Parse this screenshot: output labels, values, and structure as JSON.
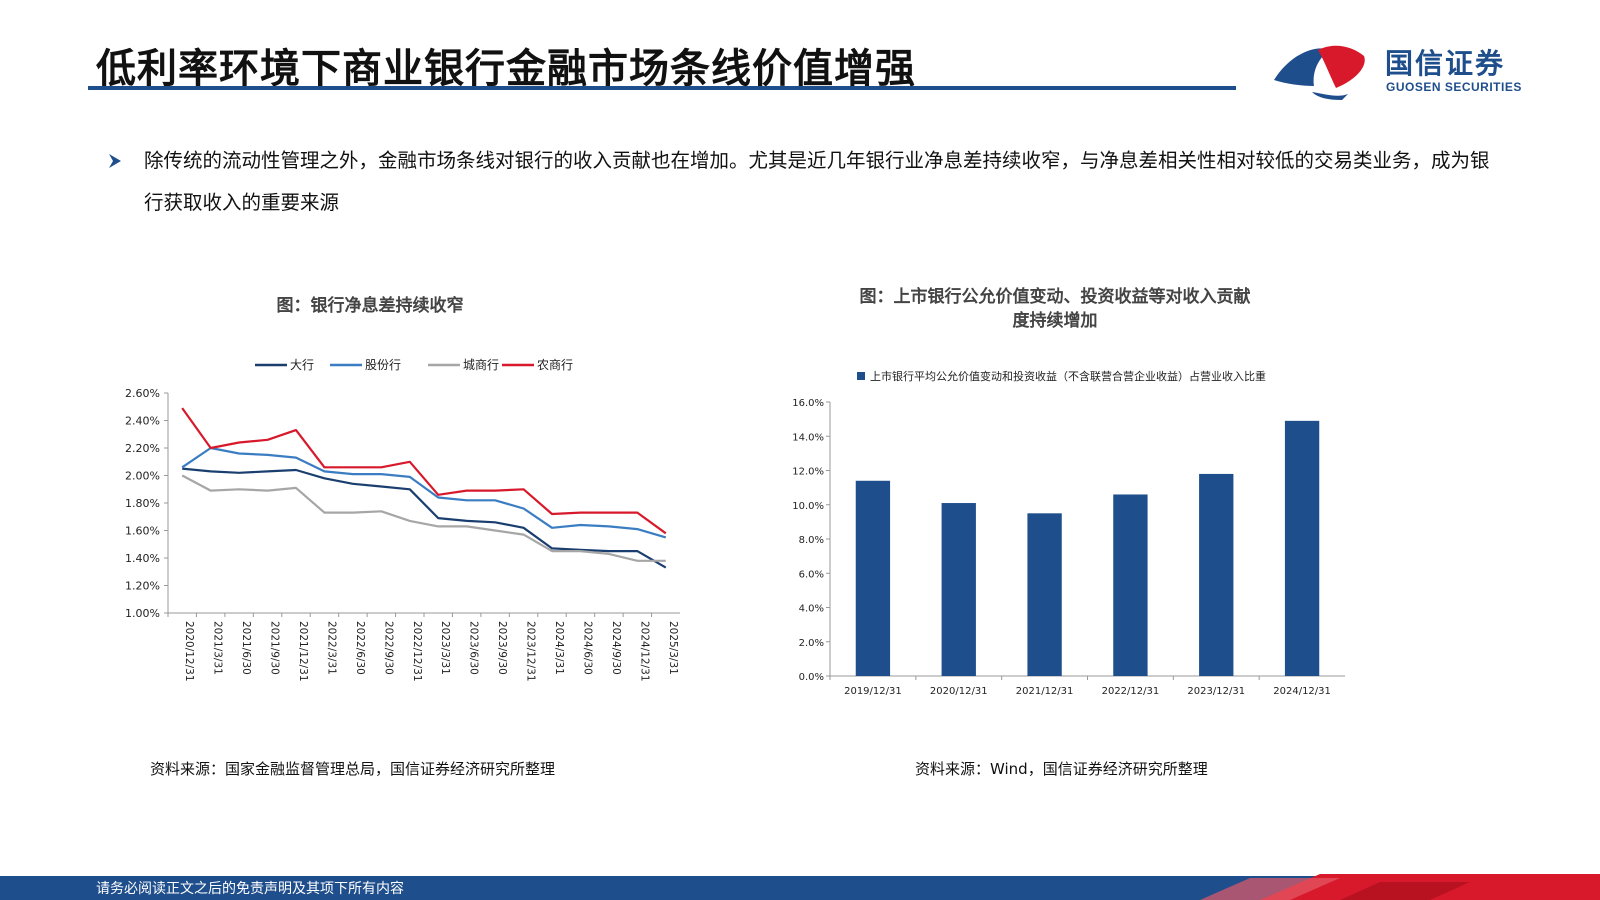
{
  "page": {
    "title": "低利率环境下商业银行金融市场条线价值增强",
    "logo_cn": "国信证券",
    "logo_en": "GUOSEN SECURITIES",
    "bullet": "除传统的流动性管理之外，金融市场条线对银行的收入贡献也在增加。尤其是近几年银行业净息差持续收窄，与净息差相关性相对较低的交易类业务，成为银行获取收入的重要来源",
    "footer": "请务必阅读正文之后的免责声明及其项下所有内容",
    "brand_colors": {
      "navy": "#1f4e8c",
      "red": "#d7192b"
    }
  },
  "left_panel": {
    "title": "图：银行净息差持续收窄",
    "source": "资料来源：国家金融监督管理总局，国信证券经济研究所整理"
  },
  "right_panel": {
    "title_line1": "图：上市银行公允价值变动、投资收益等对收入贡献",
    "title_line2": "度持续增加",
    "source": "资料来源：Wind，国信证券经济研究所整理"
  },
  "chart_data": [
    {
      "type": "line",
      "title": "图：银行净息差持续收窄",
      "x": [
        "2020/12/31",
        "2021/3/31",
        "2021/6/30",
        "2021/9/30",
        "2021/12/31",
        "2022/3/31",
        "2022/6/30",
        "2022/9/30",
        "2022/12/31",
        "2023/3/31",
        "2023/6/30",
        "2023/9/30",
        "2023/12/31",
        "2024/3/31",
        "2024/6/30",
        "2024/9/30",
        "2024/12/31",
        "2025/3/31"
      ],
      "yticks": [
        "1.00%",
        "1.20%",
        "1.40%",
        "1.60%",
        "1.80%",
        "2.00%",
        "2.20%",
        "2.40%",
        "2.60%"
      ],
      "ylim": [
        1.0,
        2.6
      ],
      "legend_position": "top",
      "grid": false,
      "series": [
        {
          "name": "大行",
          "color": "#1a3f6f",
          "values": [
            2.05,
            2.03,
            2.02,
            2.03,
            2.04,
            1.98,
            1.94,
            1.92,
            1.9,
            1.69,
            1.67,
            1.66,
            1.62,
            1.47,
            1.46,
            1.45,
            1.45,
            1.33
          ]
        },
        {
          "name": "股份行",
          "color": "#3a7dc2",
          "values": [
            2.06,
            2.2,
            2.16,
            2.15,
            2.13,
            2.03,
            2.01,
            2.01,
            1.99,
            1.84,
            1.82,
            1.82,
            1.76,
            1.62,
            1.64,
            1.63,
            1.61,
            1.55
          ]
        },
        {
          "name": "城商行",
          "color": "#a6a6a6",
          "values": [
            2.0,
            1.89,
            1.9,
            1.89,
            1.91,
            1.73,
            1.73,
            1.74,
            1.67,
            1.63,
            1.63,
            1.6,
            1.57,
            1.45,
            1.45,
            1.43,
            1.38,
            1.38
          ]
        },
        {
          "name": "农商行",
          "color": "#d7192b",
          "values": [
            2.49,
            2.2,
            2.24,
            2.26,
            2.33,
            2.06,
            2.06,
            2.06,
            2.1,
            1.86,
            1.89,
            1.89,
            1.9,
            1.72,
            1.73,
            1.73,
            1.73,
            1.58
          ]
        }
      ]
    },
    {
      "type": "bar",
      "title": "图：上市银行公允价值变动、投资收益等对收入贡献度持续增加",
      "categories": [
        "2019/12/31",
        "2020/12/31",
        "2021/12/31",
        "2022/12/31",
        "2023/12/31",
        "2024/12/31"
      ],
      "yticks": [
        "0.0%",
        "2.0%",
        "4.0%",
        "6.0%",
        "8.0%",
        "10.0%",
        "12.0%",
        "14.0%",
        "16.0%"
      ],
      "ylim": [
        0,
        16
      ],
      "legend_position": "top",
      "grid": false,
      "series": [
        {
          "name": "上市银行平均公允价值变动和投资收益（不含联营合营企业收益）占营业收入比重",
          "color": "#1f4e8c",
          "values": [
            11.4,
            10.1,
            9.5,
            10.6,
            11.8,
            14.9
          ]
        }
      ]
    }
  ]
}
